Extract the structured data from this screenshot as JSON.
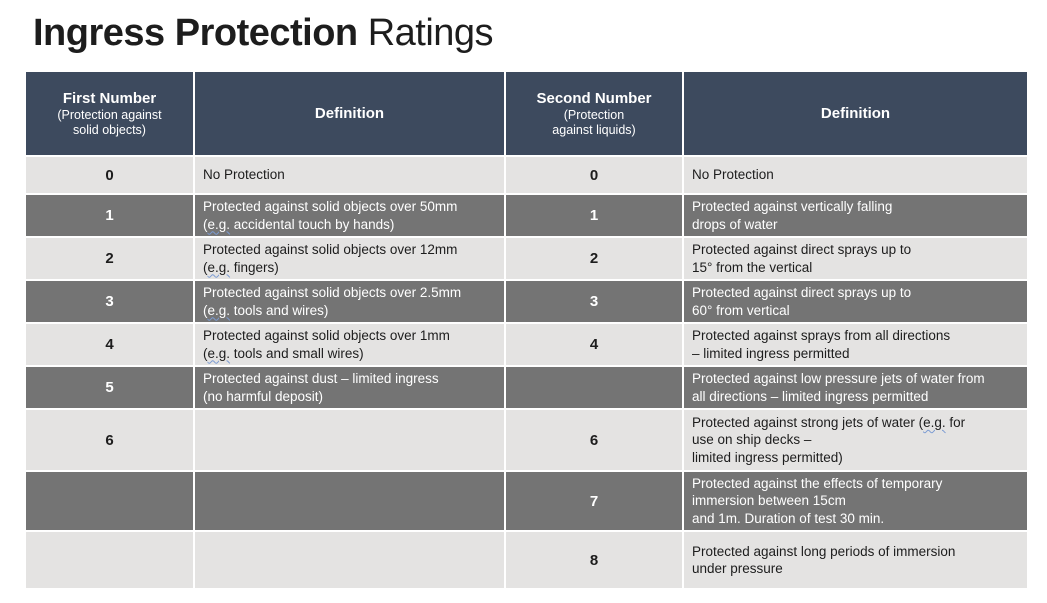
{
  "title": {
    "bold": "Ingress Protection",
    "regular": " Ratings"
  },
  "theme": {
    "header_bg": "#3d4a5e",
    "row_light_bg": "#e4e3e2",
    "row_dark_bg": "#747474",
    "text_dark": "#1d1d1d",
    "text_light": "#ffffff",
    "eg_underline": "#7b9bd2"
  },
  "table": {
    "headers": [
      {
        "title": "First Number",
        "subtitle": "(Protection against\nsolid objects)"
      },
      {
        "title": "Definition",
        "subtitle": ""
      },
      {
        "title": "Second Number",
        "subtitle": "(Protection\nagainst liquids)"
      },
      {
        "title": "Definition",
        "subtitle": ""
      }
    ],
    "rows": [
      {
        "first_number": "0",
        "first_definition": "No Protection",
        "second_number": "0",
        "second_definition": "No Protection"
      },
      {
        "first_number": "1",
        "first_definition": "Protected against solid objects over 50mm\n(e.g. accidental touch by hands)",
        "second_number": "1",
        "second_definition": "Protected against vertically falling\ndrops of water"
      },
      {
        "first_number": "2",
        "first_definition": "Protected against solid objects over 12mm\n (e.g. fingers)",
        "second_number": "2",
        "second_definition": "Protected against direct sprays up to\n15° from the vertical"
      },
      {
        "first_number": "3",
        "first_definition": "Protected against solid objects over 2.5mm\n(e.g. tools and wires)",
        "second_number": "3",
        "second_definition": "Protected against direct sprays up to\n60° from vertical"
      },
      {
        "first_number": "4",
        "first_definition": "Protected against solid objects over 1mm\n(e.g. tools and small wires)",
        "second_number": "4",
        "second_definition": "Protected against sprays from all directions\n – limited ingress permitted"
      },
      {
        "first_number": "5",
        "first_definition": "Protected against dust – limited ingress\n(no harmful deposit)",
        "second_number": "",
        "second_definition": "Protected against low pressure jets of water from\nall directions – limited ingress permitted"
      },
      {
        "first_number": "6",
        "first_definition": "",
        "second_number": "6",
        "second_definition": "Protected against strong jets of water (e.g. for\nuse on ship decks –\nlimited ingress permitted)"
      },
      {
        "first_number": "",
        "first_definition": "",
        "second_number": "7",
        "second_definition": "Protected against the effects of temporary\nimmersion between 15cm\nand 1m. Duration of test 30 min."
      },
      {
        "first_number": "",
        "first_definition": "",
        "second_number": "8",
        "second_definition": "Protected against long periods of immersion\nunder pressure"
      }
    ]
  }
}
